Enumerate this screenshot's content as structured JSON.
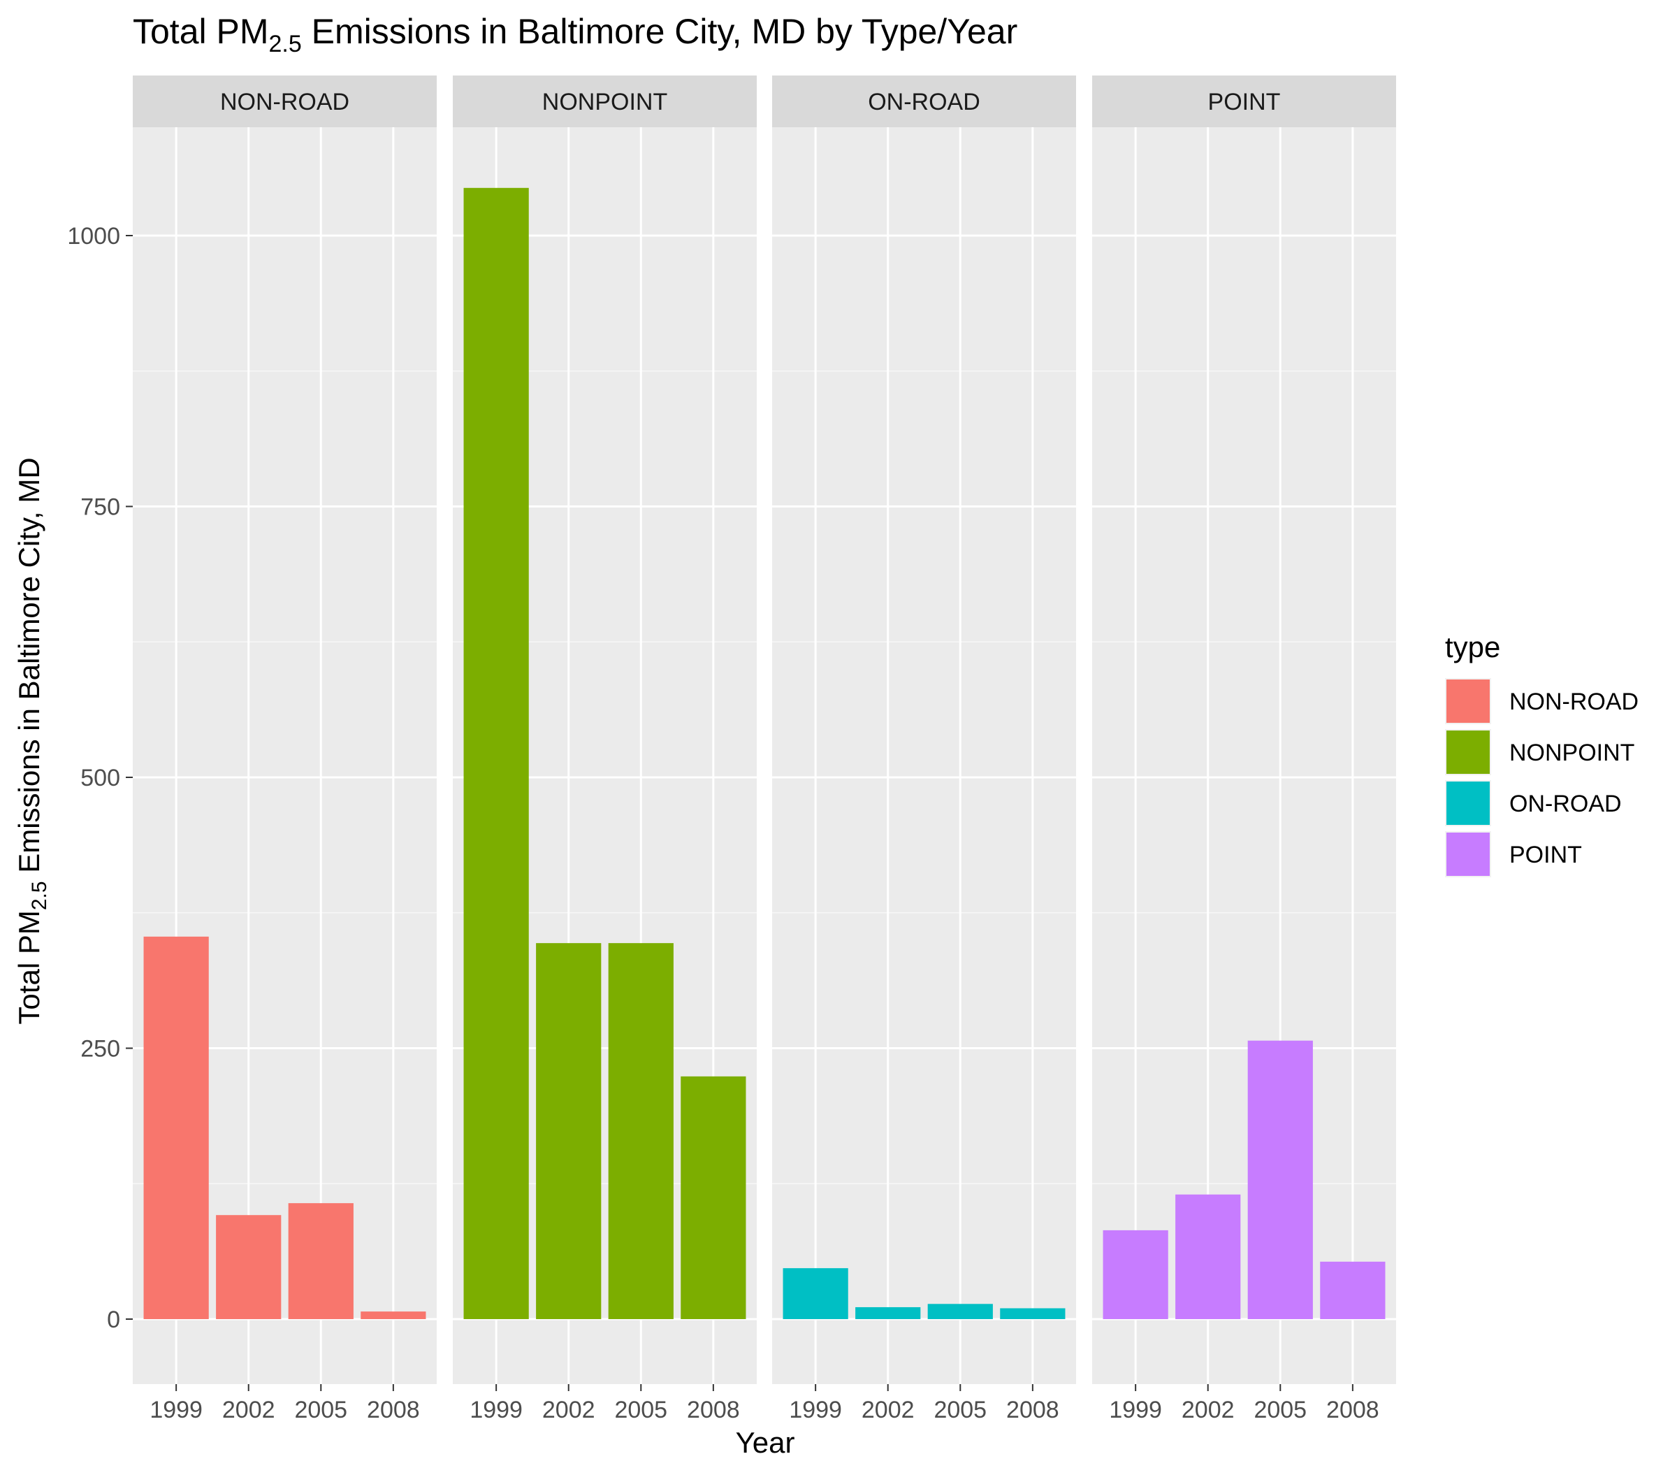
{
  "chart_data": {
    "type": "bar",
    "title": {
      "pre": "Total PM",
      "sub": "2.5",
      "post": " Emissions in Baltimore City, MD by Type/Year"
    },
    "xlabel": "Year",
    "ylabel": {
      "pre": "Total PM",
      "sub": "2.5",
      "post": " Emissions in Baltimore City, MD"
    },
    "categories": [
      "1999",
      "2002",
      "2005",
      "2008"
    ],
    "ylim": [
      -60,
      1100
    ],
    "yticks": [
      0,
      250,
      500,
      750,
      1000
    ],
    "grid": true,
    "facet_by": "type",
    "legend": {
      "title": "type",
      "position": "right"
    },
    "series": [
      {
        "name": "NON-ROAD",
        "color": "#F8766D",
        "values": [
          353,
          96,
          107,
          7
        ]
      },
      {
        "name": "NONPOINT",
        "color": "#7CAE00",
        "values": [
          1044,
          347,
          347,
          224
        ]
      },
      {
        "name": "ON-ROAD",
        "color": "#00BFC4",
        "values": [
          47,
          11,
          14,
          10
        ]
      },
      {
        "name": "POINT",
        "color": "#C77CFF",
        "values": [
          82,
          115,
          257,
          53
        ]
      }
    ]
  }
}
